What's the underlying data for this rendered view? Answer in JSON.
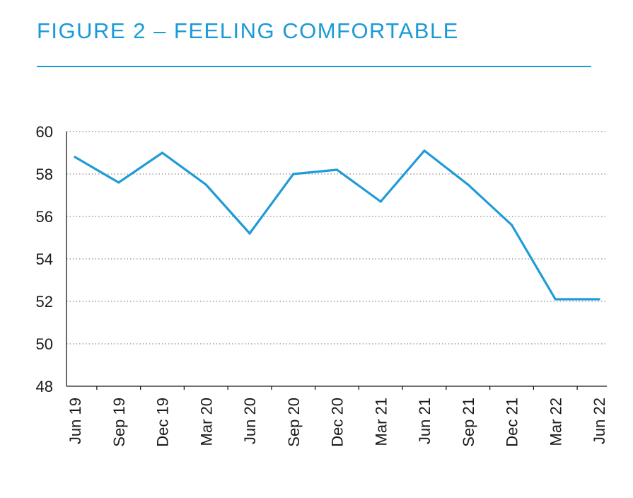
{
  "figure": {
    "title": "FIGURE 2 – FEELING COMFORTABLE"
  },
  "colors": {
    "accent": "#1a9ad6",
    "line": "#1f9bd7",
    "grid": "#8c8c8c",
    "axis": "#1a1a1a"
  },
  "chart_data": {
    "type": "line",
    "title": "",
    "xlabel": "",
    "ylabel": "",
    "categories": [
      "Jun 19",
      "Sep 19",
      "Dec 19",
      "Mar 20",
      "Jun 20",
      "Sep 20",
      "Dec 20",
      "Mar 21",
      "Jun 21",
      "Sep 21",
      "Dec 21",
      "Mar 22",
      "Jun 22"
    ],
    "series": [
      {
        "values": [
          58.8,
          57.6,
          59.0,
          57.5,
          55.2,
          58.0,
          58.2,
          56.7,
          59.1,
          57.5,
          55.6,
          52.1,
          52.1
        ]
      }
    ],
    "ylim": [
      48,
      60
    ],
    "yticks": [
      "48",
      "50",
      "52",
      "54",
      "56",
      "58",
      "60"
    ],
    "grid": "horizontal-dotted",
    "legend": "none"
  }
}
